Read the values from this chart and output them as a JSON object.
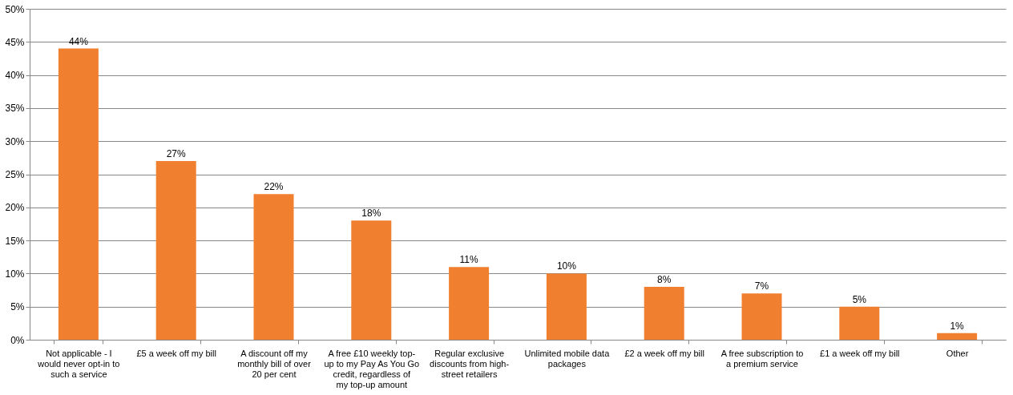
{
  "chart_data": {
    "type": "bar",
    "categories": [
      "Not applicable - I would never opt-in to such a service",
      "£5 a week off my bill",
      "A discount off my monthly bill of over 20 per cent",
      "A free £10 weekly top-up to my Pay As You Go credit, regardless of my top-up amount",
      "Regular exclusive discounts from high-street retailers",
      "Unlimited mobile data packages",
      "£2 a week off my bill",
      "A free subscription to a premium service",
      "£1 a week off my bill",
      "Other"
    ],
    "values": [
      44,
      27,
      22,
      18,
      11,
      10,
      8,
      7,
      5,
      1
    ],
    "value_labels": [
      "44%",
      "27%",
      "22%",
      "18%",
      "11%",
      "10%",
      "8%",
      "7%",
      "5%",
      "1%"
    ],
    "color": "#f07f30",
    "ylim": [
      0,
      50
    ],
    "yticks": [
      {
        "value": 0,
        "label": "0%"
      },
      {
        "value": 5,
        "label": "5%"
      },
      {
        "value": 10,
        "label": "10%"
      },
      {
        "value": 15,
        "label": "15%"
      },
      {
        "value": 20,
        "label": "20%"
      },
      {
        "value": 25,
        "label": "25%"
      },
      {
        "value": 30,
        "label": "30%"
      },
      {
        "value": 35,
        "label": "35%"
      },
      {
        "value": 40,
        "label": "40%"
      },
      {
        "value": 45,
        "label": "45%"
      },
      {
        "value": 50,
        "label": "50%"
      }
    ],
    "grid": "y"
  }
}
